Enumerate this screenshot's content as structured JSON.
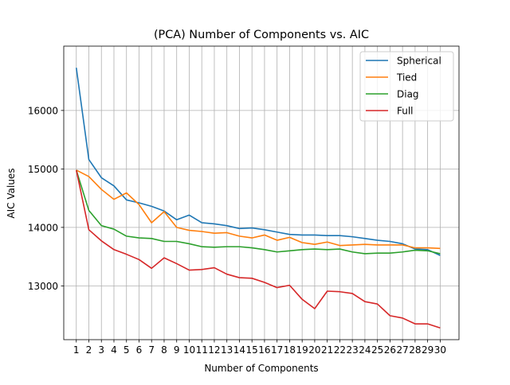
{
  "chart_data": {
    "type": "line",
    "title": "(PCA) Number of Components vs. AIC",
    "xlabel": "Number of Components",
    "ylabel": "AIC Values",
    "x": [
      1,
      2,
      3,
      4,
      5,
      6,
      7,
      8,
      9,
      10,
      11,
      12,
      13,
      14,
      15,
      16,
      17,
      18,
      19,
      20,
      21,
      22,
      23,
      24,
      25,
      26,
      27,
      28,
      29,
      30
    ],
    "xlim": [
      0.0,
      31.5
    ],
    "ylim": [
      12080,
      17100
    ],
    "yticks": [
      13000,
      14000,
      15000,
      16000
    ],
    "ytick_labels": [
      "13000",
      "14000",
      "15000",
      "16000"
    ],
    "grid": true,
    "legend_position": "top-right",
    "series": [
      {
        "name": "Spherical",
        "color": "#1f77b4",
        "values": [
          16730,
          15160,
          14850,
          14710,
          14470,
          14420,
          14360,
          14280,
          14130,
          14210,
          14080,
          14060,
          14030,
          13980,
          13990,
          13960,
          13920,
          13880,
          13870,
          13870,
          13860,
          13860,
          13840,
          13810,
          13780,
          13760,
          13720,
          13630,
          13620,
          13520
        ]
      },
      {
        "name": "Tied",
        "color": "#ff7f0e",
        "values": [
          14980,
          14870,
          14650,
          14480,
          14590,
          14390,
          14080,
          14270,
          14000,
          13950,
          13930,
          13900,
          13910,
          13850,
          13820,
          13870,
          13780,
          13830,
          13740,
          13710,
          13750,
          13690,
          13700,
          13710,
          13700,
          13700,
          13700,
          13650,
          13650,
          13640
        ]
      },
      {
        "name": "Diag",
        "color": "#2ca02c",
        "values": [
          14980,
          14290,
          14030,
          13970,
          13850,
          13820,
          13810,
          13760,
          13760,
          13720,
          13670,
          13660,
          13670,
          13670,
          13650,
          13620,
          13580,
          13600,
          13620,
          13630,
          13620,
          13630,
          13580,
          13550,
          13560,
          13560,
          13580,
          13610,
          13600,
          13550
        ]
      },
      {
        "name": "Full",
        "color": "#d62728",
        "values": [
          14980,
          13960,
          13770,
          13620,
          13540,
          13450,
          13300,
          13480,
          13380,
          13270,
          13280,
          13310,
          13200,
          13140,
          13130,
          13060,
          12970,
          13010,
          12770,
          12610,
          12910,
          12900,
          12870,
          12730,
          12690,
          12490,
          12450,
          12350,
          12350,
          12280
        ]
      }
    ]
  }
}
